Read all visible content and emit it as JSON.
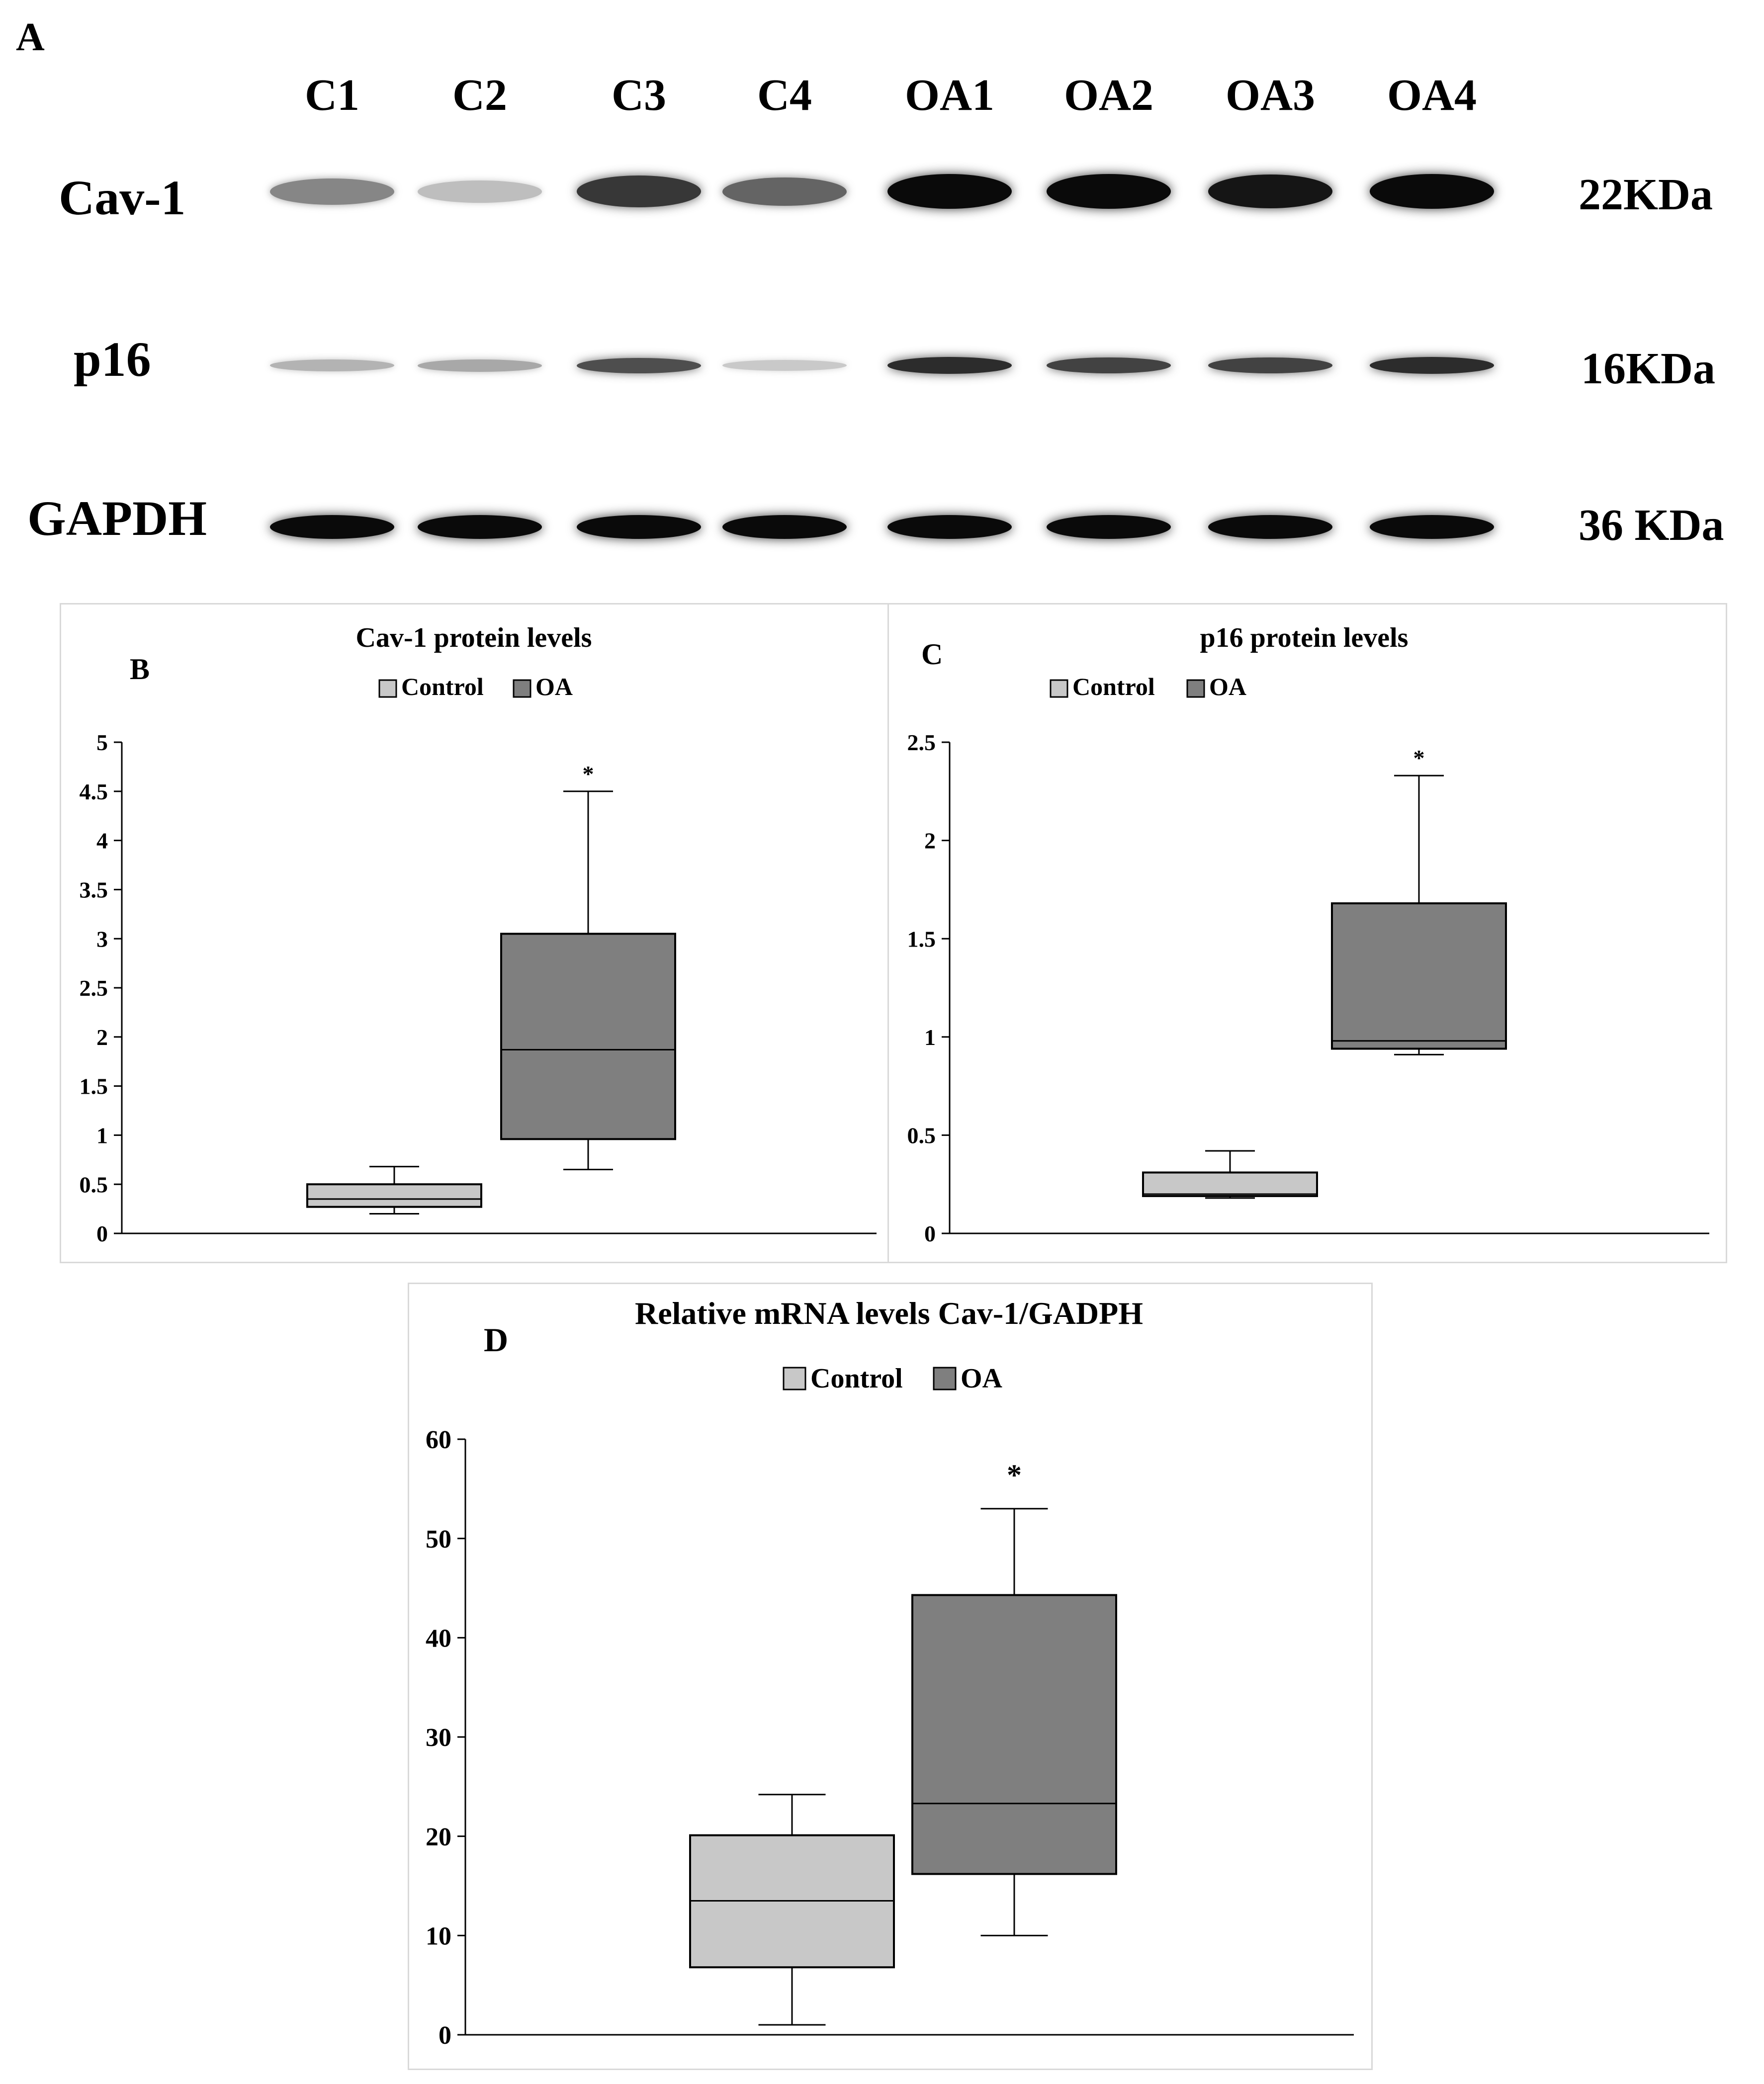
{
  "panel_a": {
    "letter": "A",
    "lanes": [
      "C1",
      "C2",
      "C3",
      "C4",
      "OA1",
      "OA2",
      "OA3",
      "OA4"
    ],
    "rows": [
      {
        "protein": "Cav-1",
        "kda": "22KDa",
        "band_intensity": [
          0.45,
          0.2,
          0.8,
          0.6,
          1.0,
          1.0,
          0.95,
          1.0
        ]
      },
      {
        "protein": "p16",
        "kda": "16KDa",
        "band_intensity": [
          0.25,
          0.3,
          0.7,
          0.15,
          0.85,
          0.75,
          0.75,
          0.85
        ]
      },
      {
        "protein": "GAPDH",
        "kda": "36 KDa",
        "band_intensity": [
          1.0,
          1.0,
          1.0,
          1.0,
          1.0,
          1.0,
          1.0,
          1.0
        ]
      }
    ]
  },
  "legend": {
    "control": "Control",
    "oa": "OA"
  },
  "colors": {
    "control": "#c8c8c8",
    "oa": "#7f7f7f",
    "border": "#d9d9d9"
  },
  "chart_data": [
    {
      "letter": "B",
      "type": "boxplot",
      "title": "Cav-1 protein levels",
      "ylim": [
        0,
        5
      ],
      "yticks": [
        "0",
        "0.5",
        "1",
        "1.5",
        "2",
        "2.5",
        "3",
        "3.5",
        "4",
        "4.5",
        "5"
      ],
      "series": [
        {
          "name": "Control",
          "min": 0.2,
          "q1": 0.27,
          "median": 0.35,
          "q3": 0.5,
          "max": 0.68
        },
        {
          "name": "OA",
          "min": 0.65,
          "q1": 0.96,
          "median": 1.87,
          "q3": 3.05,
          "max": 4.5
        }
      ],
      "significance": "*"
    },
    {
      "letter": "C",
      "type": "boxplot",
      "title": "p16 protein levels",
      "ylim": [
        0,
        2.5
      ],
      "yticks": [
        "0",
        "0.5",
        "1",
        "1.5",
        "2",
        "2.5"
      ],
      "series": [
        {
          "name": "Control",
          "min": 0.18,
          "q1": 0.19,
          "median": 0.2,
          "q3": 0.31,
          "max": 0.42
        },
        {
          "name": "OA",
          "min": 0.91,
          "q1": 0.94,
          "median": 0.98,
          "q3": 1.68,
          "max": 2.33
        }
      ],
      "significance": "*"
    },
    {
      "letter": "D",
      "type": "boxplot",
      "title": "Relative mRNA levels Cav-1/GADPH",
      "ylim": [
        0,
        60
      ],
      "yticks": [
        "0",
        "10",
        "20",
        "30",
        "40",
        "50",
        "60"
      ],
      "series": [
        {
          "name": "Control",
          "min": 1,
          "q1": 6.8,
          "median": 13.5,
          "q3": 20.1,
          "max": 24.2
        },
        {
          "name": "OA",
          "min": 10,
          "q1": 16.2,
          "median": 23.3,
          "q3": 44.3,
          "max": 53
        }
      ],
      "significance": "*"
    }
  ]
}
